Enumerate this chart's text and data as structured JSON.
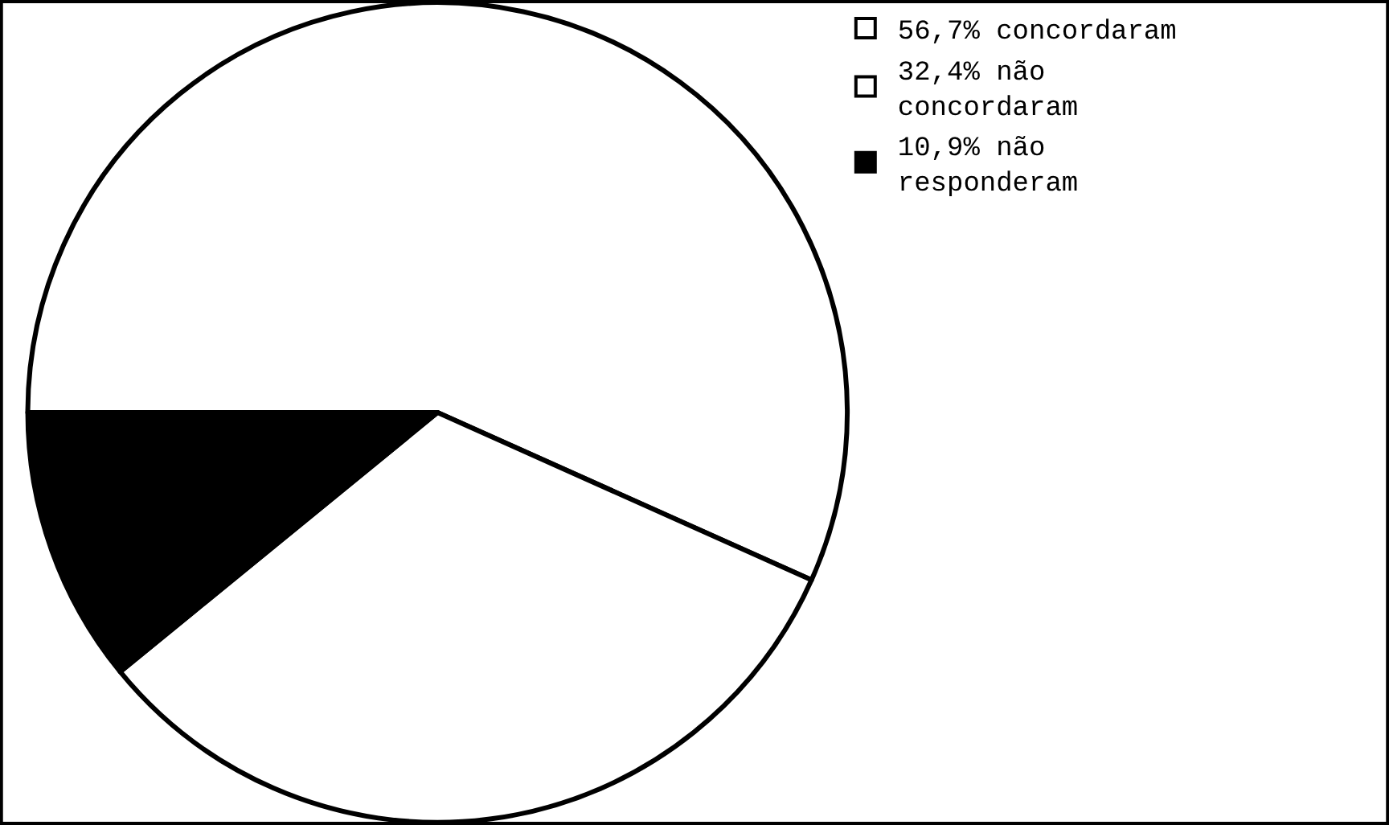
{
  "chart_data": {
    "type": "pie",
    "categories": [
      "56,7% concordaram",
      "32,4% não concordaram",
      "10,9% não responderam"
    ],
    "values": [
      56.7,
      32.4,
      10.9
    ],
    "colors": [
      "#ffffff",
      "#ffffff",
      "#000000"
    ],
    "legend": "top right"
  }
}
